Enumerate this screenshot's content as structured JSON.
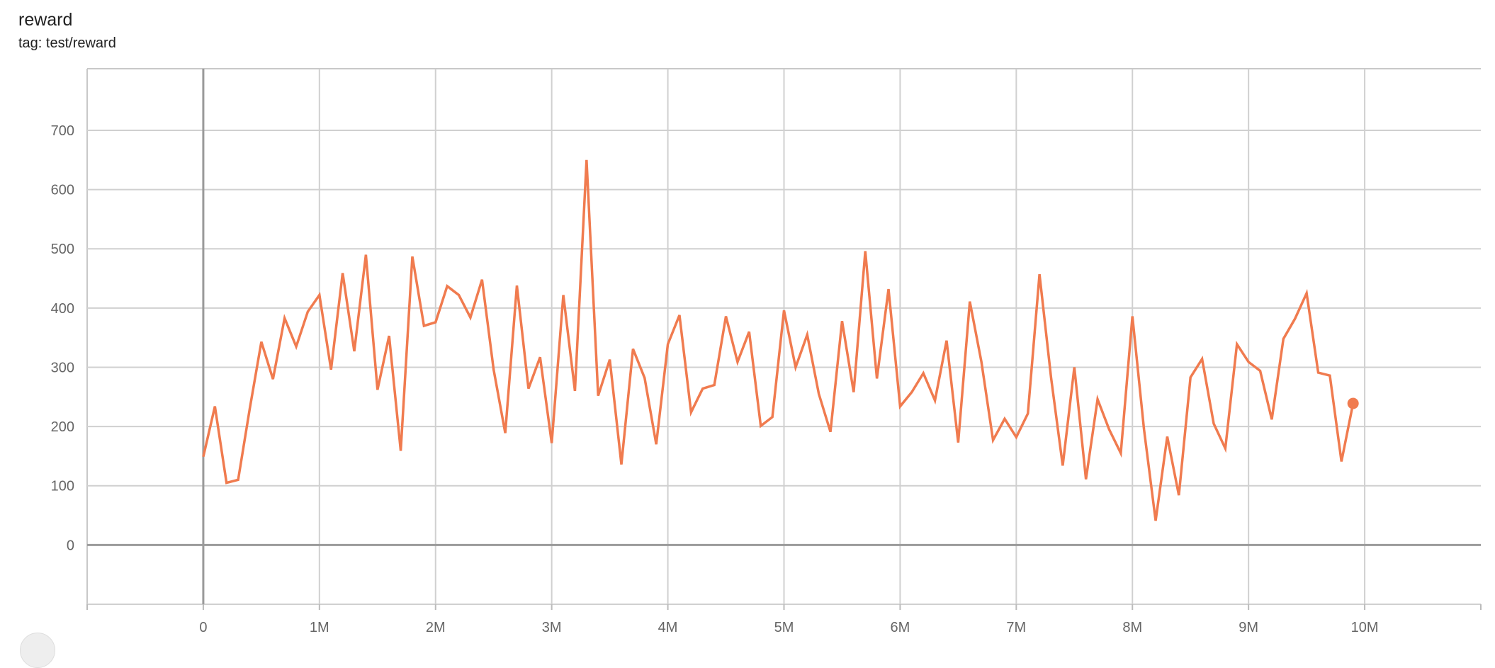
{
  "header": {
    "title": "reward",
    "tag": "tag: test/reward"
  },
  "chart_data": {
    "type": "line",
    "title": "reward",
    "subtitle": "tag: test/reward",
    "xlabel": "",
    "ylabel": "",
    "xlim": [
      -1000000,
      11000000
    ],
    "ylim": [
      -100,
      804
    ],
    "grid": true,
    "legend": "none",
    "line_color": "#f07b4f",
    "x_ticks": [
      {
        "value": 0,
        "label": "0"
      },
      {
        "value": 1000000,
        "label": "1M"
      },
      {
        "value": 2000000,
        "label": "2M"
      },
      {
        "value": 3000000,
        "label": "3M"
      },
      {
        "value": 4000000,
        "label": "4M"
      },
      {
        "value": 5000000,
        "label": "5M"
      },
      {
        "value": 6000000,
        "label": "6M"
      },
      {
        "value": 7000000,
        "label": "7M"
      },
      {
        "value": 8000000,
        "label": "8M"
      },
      {
        "value": 9000000,
        "label": "9M"
      },
      {
        "value": 10000000,
        "label": "10M"
      }
    ],
    "y_ticks": [
      {
        "value": 0,
        "label": "0"
      },
      {
        "value": 100,
        "label": "100"
      },
      {
        "value": 200,
        "label": "200"
      },
      {
        "value": 300,
        "label": "300"
      },
      {
        "value": 400,
        "label": "400"
      },
      {
        "value": 500,
        "label": "500"
      },
      {
        "value": 600,
        "label": "600"
      },
      {
        "value": 700,
        "label": "700"
      }
    ],
    "x_step": 100000,
    "series": [
      {
        "values": [
          149,
          234,
          105,
          110,
          230,
          343,
          280,
          383,
          335,
          394,
          422,
          296,
          459,
          327,
          490,
          262,
          353,
          159,
          487,
          370,
          376,
          437,
          422,
          384,
          448,
          296,
          189,
          438,
          264,
          317,
          172,
          422,
          260,
          650,
          252,
          313,
          136,
          331,
          282,
          170,
          339,
          388,
          224,
          264,
          270,
          386,
          309,
          360,
          201,
          216,
          396,
          300,
          355,
          255,
          191,
          378,
          258,
          496,
          281,
          432,
          234,
          258,
          290,
          244,
          345,
          173,
          411,
          309,
          177,
          213,
          182,
          222,
          457,
          282,
          134,
          300,
          111,
          246,
          195,
          155,
          386,
          195,
          41,
          183,
          84,
          283,
          314,
          205,
          163,
          339,
          309,
          294,
          212,
          348,
          382,
          425,
          291,
          286,
          141,
          239
        ]
      }
    ]
  }
}
